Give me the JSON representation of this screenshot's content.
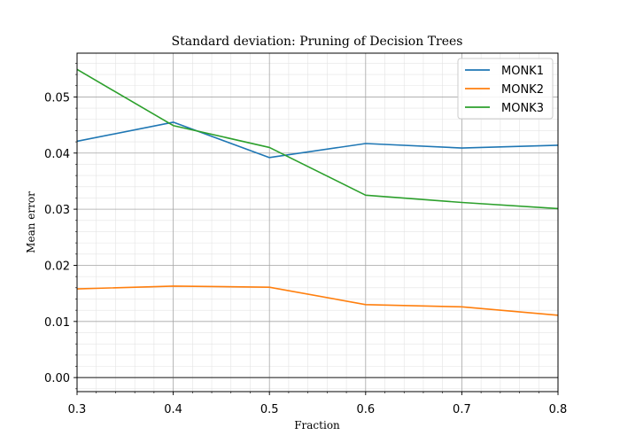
{
  "chart_data": {
    "type": "line",
    "title": "Standard deviation: Pruning of Decision Trees",
    "xlabel": "Fraction",
    "ylabel": "Mean error",
    "x": [
      0.3,
      0.4,
      0.5,
      0.6,
      0.7,
      0.8
    ],
    "xlim": [
      0.3,
      0.8
    ],
    "ylim": [
      -0.0025,
      0.0578
    ],
    "xticks": [
      "0.3",
      "0.4",
      "0.5",
      "0.6",
      "0.7",
      "0.8"
    ],
    "yticks": [
      "0.00",
      "0.01",
      "0.02",
      "0.03",
      "0.04",
      "0.05"
    ],
    "xtick_values": [
      0.3,
      0.4,
      0.5,
      0.6,
      0.7,
      0.8
    ],
    "ytick_values": [
      0.0,
      0.01,
      0.02,
      0.03,
      0.04,
      0.05
    ],
    "grid": true,
    "minor_grid": true,
    "reference_line_y": 0.0,
    "legend_position": "top-right",
    "series": [
      {
        "name": "MONK1",
        "color": "#1f77b4",
        "values": [
          0.0421,
          0.0455,
          0.0392,
          0.0417,
          0.0409,
          0.0414
        ]
      },
      {
        "name": "MONK2",
        "color": "#ff7f0e",
        "values": [
          0.0158,
          0.0163,
          0.0161,
          0.013,
          0.0126,
          0.0111
        ]
      },
      {
        "name": "MONK3",
        "color": "#2ca02c",
        "values": [
          0.0549,
          0.0449,
          0.041,
          0.0325,
          0.0312,
          0.0301
        ]
      }
    ]
  }
}
